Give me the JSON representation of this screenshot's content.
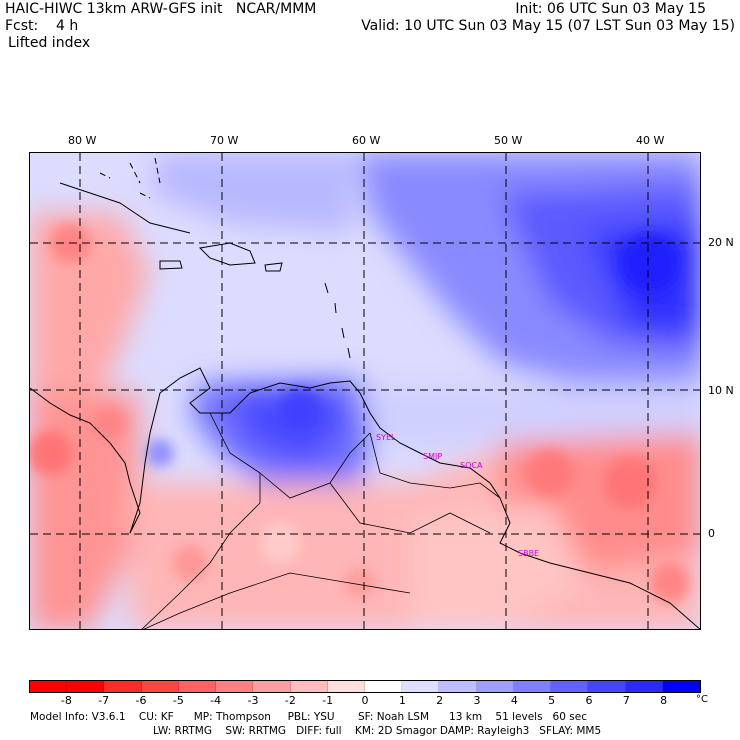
{
  "header": {
    "line1_left": "HAIC-HIWC 13km ARW-GFS init   NCAR/MMM",
    "line1_right": "Init: 06 UTC Sun 03 May 15",
    "line2_left": "Fcst:    4 h",
    "line2_right": "Valid: 10 UTC Sun 03 May 15 (07 LST Sun 03 May 15)",
    "line3": "Lifted index"
  },
  "map": {
    "lon_labels": [
      "80 W",
      "70 W",
      "60 W",
      "50 W",
      "40 W"
    ],
    "lat_labels": [
      "20 N",
      "10 N",
      "0"
    ],
    "stations": [
      "SYEL",
      "SMJP",
      "SOCA",
      "SBBE"
    ]
  },
  "colorbar": {
    "labels": [
      "-8",
      "-7",
      "-6",
      "-5",
      "-4",
      "-3",
      "-2",
      "-1",
      "0",
      "1",
      "2",
      "3",
      "4",
      "5",
      "6",
      "7",
      "8"
    ],
    "unit": "°C",
    "colors": [
      "#ff0000",
      "#ff2a2a",
      "#ff4545",
      "#ff6262",
      "#ff8080",
      "#ff9e9e",
      "#ffbdbd",
      "#ffdede",
      "#ffffff",
      "#dedeff",
      "#bdbdff",
      "#9e9eff",
      "#8080ff",
      "#6262ff",
      "#4545ff",
      "#2a2aff",
      "#0000ff"
    ]
  },
  "footer": {
    "line1": "Model Info: V3.6.1    CU: KF      MP: Thompson     PBL: YSU       SF: Noah LSM      13 km    51 levels   60 sec",
    "line2": "LW: RRTMG    SW: RRTMG   DIFF: full    KM: 2D Smagor DAMP: Rayleigh3   SFLAY: MM5"
  }
}
